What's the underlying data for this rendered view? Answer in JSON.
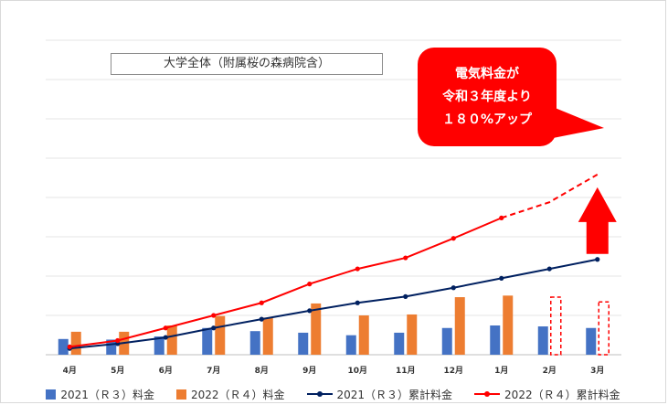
{
  "chart_data": {
    "type": "bar+line",
    "title": "大学全体（附属桜の森病院含）",
    "categories": [
      "4月",
      "5月",
      "6月",
      "7月",
      "8月",
      "9月",
      "10月",
      "11月",
      "12月",
      "1月",
      "2月",
      "3月"
    ],
    "ylim": [
      0,
      100
    ],
    "grid": true,
    "legend_position": "bottom",
    "series": [
      {
        "name": "2021（Ｒ３）料金",
        "kind": "bar",
        "color": "#4472c4",
        "values": [
          5.0,
          4.8,
          5.8,
          8.5,
          7.5,
          7.0,
          6.2,
          7.0,
          8.5,
          9.3,
          9.0,
          8.5
        ]
      },
      {
        "name": "2022（Ｒ４）料金",
        "kind": "bar",
        "color": "#ed7d31",
        "values": [
          7.3,
          7.3,
          9.3,
          12.3,
          11.8,
          16.3,
          12.5,
          12.8,
          18.3,
          18.8,
          null,
          null
        ],
        "placeholders": [
          null,
          null,
          null,
          null,
          null,
          null,
          null,
          null,
          null,
          null,
          18.3,
          16.8
        ]
      },
      {
        "name": "2021（Ｒ３）累計料金",
        "kind": "line",
        "color": "#002060",
        "values": [
          2.0,
          3.5,
          5.5,
          8.5,
          11.3,
          14.0,
          16.5,
          18.5,
          21.3,
          24.3,
          27.3,
          30.3
        ]
      },
      {
        "name": "2022（Ｒ４）累計料金",
        "kind": "line",
        "color": "#ff0000",
        "values": [
          2.5,
          4.5,
          8.5,
          12.5,
          16.5,
          22.5,
          27.3,
          30.8,
          37.0,
          43.5,
          null,
          null
        ],
        "projection": [
          43.5,
          48.5,
          57.3
        ]
      }
    ]
  },
  "callout": {
    "lines": [
      "電気料金が",
      "令和３年度より",
      "１８０%アップ"
    ],
    "color": "#ff0000"
  },
  "arrow_color": "#ff0000"
}
